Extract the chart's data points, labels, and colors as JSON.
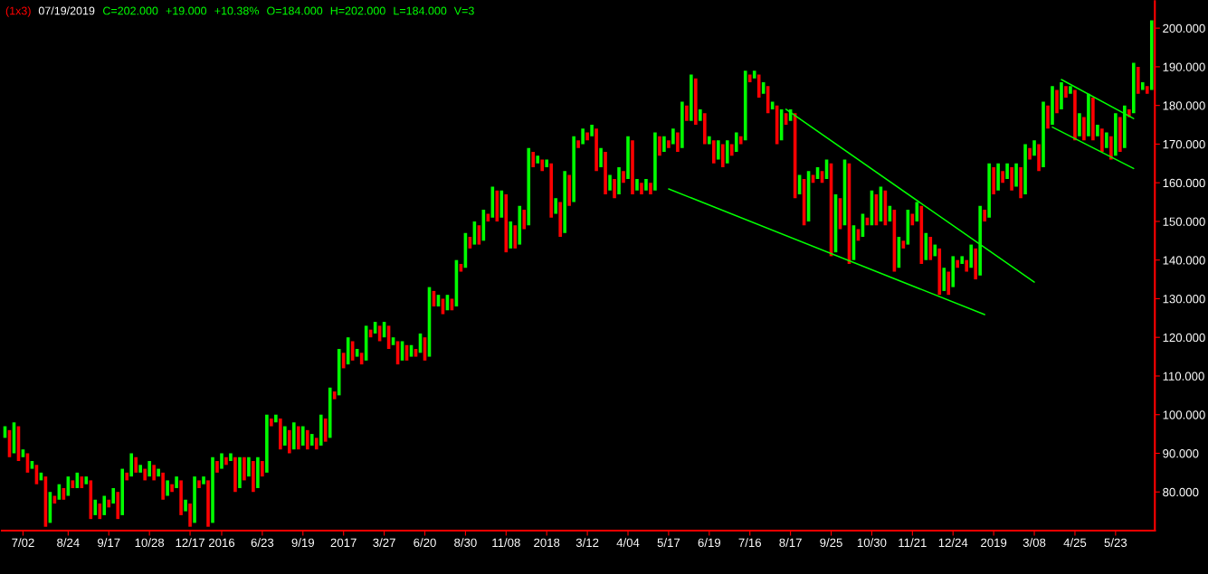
{
  "chart_data": {
    "type": "bar",
    "title": "(1x3)",
    "subtitle": "07/19/2019",
    "annotations": [
      "C=202.000",
      "+19.000",
      "+10.38%",
      "O=184.000",
      "H=202.000",
      "L=184.000",
      "V=3"
    ],
    "categories": [
      null,
      null,
      null,
      null,
      "7/02",
      null,
      null,
      null,
      null,
      null,
      null,
      null,
      null,
      null,
      "8/24",
      null,
      null,
      null,
      null,
      null,
      null,
      null,
      null,
      "9/17",
      null,
      null,
      null,
      null,
      null,
      null,
      null,
      null,
      "10/28",
      null,
      null,
      null,
      null,
      null,
      null,
      null,
      null,
      "12/17",
      null,
      null,
      null,
      null,
      null,
      null,
      "2016",
      null,
      null,
      null,
      null,
      null,
      null,
      null,
      null,
      "6/23",
      null,
      null,
      null,
      null,
      null,
      null,
      null,
      null,
      "9/19",
      null,
      null,
      null,
      null,
      null,
      null,
      null,
      null,
      "2017",
      null,
      null,
      null,
      null,
      null,
      null,
      null,
      null,
      "3/27",
      null,
      null,
      null,
      null,
      null,
      null,
      null,
      null,
      "6/20",
      null,
      null,
      null,
      null,
      null,
      null,
      null,
      null,
      "8/30",
      null,
      null,
      null,
      null,
      null,
      null,
      null,
      null,
      "11/08",
      null,
      null,
      null,
      null,
      null,
      null,
      null,
      null,
      "2018",
      null,
      null,
      null,
      null,
      null,
      null,
      null,
      null,
      "3/12",
      null,
      null,
      null,
      null,
      null,
      null,
      null,
      null,
      "4/04",
      null,
      null,
      null,
      null,
      null,
      null,
      null,
      null,
      "5/17",
      null,
      null,
      null,
      null,
      null,
      null,
      null,
      null,
      "6/19",
      null,
      null,
      null,
      null,
      null,
      null,
      null,
      null,
      "7/16",
      null,
      null,
      null,
      null,
      null,
      null,
      null,
      null,
      "8/17",
      null,
      null,
      null,
      null,
      null,
      null,
      null,
      null,
      "9/25",
      null,
      null,
      null,
      null,
      null,
      null,
      null,
      null,
      "10/30",
      null,
      null,
      null,
      null,
      null,
      null,
      null,
      null,
      "11/21",
      null,
      null,
      null,
      null,
      null,
      null,
      null,
      null,
      "12/24",
      null,
      null,
      null,
      null,
      null,
      null,
      null,
      null,
      "2019",
      null,
      null,
      null,
      null,
      null,
      null,
      null,
      null,
      "3/08",
      null,
      null,
      null,
      null,
      null,
      null,
      null,
      null,
      "4/25",
      null,
      null,
      null,
      null,
      null,
      null,
      null,
      null,
      "5/23",
      null,
      null,
      null,
      null,
      null,
      null,
      null,
      null
    ],
    "series": [
      {
        "base": [
          94,
          89,
          90,
          88,
          89,
          85,
          86,
          82,
          83,
          71,
          72,
          77,
          78,
          78,
          79,
          81,
          81,
          81,
          82,
          73,
          74,
          73,
          74,
          76,
          77,
          73,
          74,
          83,
          84,
          85,
          85,
          83,
          84,
          83,
          84,
          78,
          79,
          80,
          81,
          74,
          75,
          71,
          72,
          81,
          82,
          71,
          72,
          85,
          86,
          87,
          88,
          80,
          81,
          83,
          84,
          80,
          81,
          84,
          85,
          97,
          98,
          91,
          92,
          90,
          91,
          91,
          92,
          91,
          92,
          91,
          92,
          93,
          94,
          104,
          105,
          112,
          113,
          114,
          115,
          113,
          114,
          120,
          121,
          119,
          120,
          117,
          118,
          113,
          114,
          114,
          115,
          115,
          116,
          114,
          115,
          128,
          128,
          126,
          127,
          127,
          128,
          137,
          138,
          143,
          144,
          144,
          145,
          150,
          151,
          150,
          151,
          142,
          143,
          143,
          144,
          148,
          149,
          164,
          165,
          163,
          164,
          151,
          152,
          146,
          147,
          154,
          155,
          169,
          170,
          171,
          172,
          163,
          164,
          157,
          158,
          156,
          157,
          160,
          161,
          157,
          158,
          157,
          158,
          157,
          158,
          167,
          168,
          169,
          170,
          168,
          169,
          176,
          176,
          175,
          176,
          170,
          170,
          165,
          166,
          164,
          165,
          167,
          168,
          170,
          171,
          186,
          187,
          182,
          183,
          178,
          179,
          170,
          171,
          175,
          176,
          156,
          157,
          149,
          150,
          160,
          161,
          160,
          161,
          141,
          142,
          148,
          149,
          139,
          140,
          145,
          146,
          149,
          149,
          149,
          150,
          149,
          150,
          137,
          138,
          143,
          144,
          149,
          150,
          139,
          140,
          140,
          141,
          131,
          132,
          131,
          133,
          138,
          139,
          137,
          138,
          135,
          136,
          150,
          151,
          157,
          158,
          160,
          161,
          158,
          159,
          156,
          157,
          166,
          167,
          163,
          164,
          174,
          175,
          178,
          179,
          182,
          183,
          171,
          172,
          171,
          172,
          171,
          172,
          168,
          169,
          166,
          167,
          168,
          169,
          177,
          178,
          183,
          184,
          183,
          184
        ],
        "values": [
          3,
          7,
          8,
          9,
          2,
          5,
          2,
          5,
          2,
          13,
          8,
          2,
          4,
          3,
          5,
          2,
          4,
          3,
          2,
          10,
          4,
          4,
          5,
          2,
          4,
          7,
          12,
          2,
          6,
          4,
          2,
          3,
          4,
          4,
          2,
          7,
          4,
          2,
          3,
          9,
          3,
          6,
          12,
          2,
          2,
          12,
          17,
          3,
          4,
          2,
          2,
          9,
          8,
          6,
          5,
          8,
          8,
          4,
          15,
          2,
          2,
          8,
          5,
          6,
          7,
          6,
          5,
          5,
          3,
          3,
          8,
          6,
          13,
          2,
          12,
          4,
          7,
          5,
          2,
          3,
          9,
          2,
          3,
          4,
          4,
          6,
          2,
          6,
          5,
          4,
          3,
          2,
          5,
          6,
          18,
          4,
          3,
          4,
          4,
          3,
          12,
          2,
          9,
          3,
          6,
          5,
          8,
          2,
          8,
          8,
          7,
          15,
          7,
          6,
          10,
          5,
          20,
          4,
          2,
          3,
          2,
          14,
          4,
          9,
          16,
          8,
          17,
          2,
          4,
          2,
          3,
          11,
          5,
          11,
          4,
          5,
          7,
          3,
          11,
          14,
          3,
          3,
          3,
          3,
          15,
          5,
          4,
          2,
          4,
          5,
          12,
          4,
          12,
          12,
          3,
          8,
          2,
          6,
          5,
          6,
          6,
          3,
          5,
          2,
          18,
          2,
          2,
          6,
          3,
          7,
          2,
          10,
          8,
          3,
          3,
          22,
          5,
          12,
          13,
          2,
          3,
          3,
          5,
          24,
          15,
          8,
          17,
          26,
          9,
          3,
          6,
          2,
          9,
          8,
          9,
          9,
          4,
          16,
          8,
          2,
          9,
          3,
          5,
          15,
          7,
          6,
          3,
          12,
          6,
          6,
          8,
          2,
          2,
          3,
          6,
          8,
          18,
          3,
          14,
          7,
          7,
          3,
          4,
          6,
          6,
          8,
          13,
          3,
          4,
          7,
          17,
          6,
          10,
          6,
          7,
          3,
          2,
          13,
          6,
          6,
          11,
          11,
          3,
          6,
          4,
          6,
          11,
          9,
          11,
          2,
          13,
          7,
          2,
          2,
          18
        ],
        "colors": [
          "#00ff00",
          "#ff0000",
          "#00ff00",
          "#ff0000",
          "#00ff00",
          "#ff0000",
          "#00ff00",
          "#ff0000",
          "#00ff00",
          "#ff0000",
          "#00ff00",
          "#ff0000",
          "#00ff00",
          "#ff0000",
          "#00ff00",
          "#ff0000",
          "#00ff00",
          "#ff0000",
          "#00ff00",
          "#ff0000",
          "#00ff00",
          "#ff0000",
          "#00ff00",
          "#ff0000",
          "#00ff00",
          "#ff0000",
          "#00ff00",
          "#ff0000",
          "#00ff00",
          "#ff0000",
          "#00ff00",
          "#ff0000",
          "#00ff00",
          "#ff0000",
          "#00ff00",
          "#ff0000",
          "#00ff00",
          "#ff0000",
          "#00ff00",
          "#ff0000",
          "#00ff00",
          "#ff0000",
          "#00ff00",
          "#ff0000",
          "#00ff00",
          "#ff0000",
          "#00ff00",
          "#ff0000",
          "#00ff00",
          "#ff0000",
          "#00ff00",
          "#ff0000",
          "#00ff00",
          "#ff0000",
          "#00ff00",
          "#ff0000",
          "#00ff00",
          "#ff0000",
          "#00ff00",
          "#ff0000",
          "#00ff00",
          "#ff0000",
          "#00ff00",
          "#ff0000",
          "#00ff00",
          "#ff0000",
          "#00ff00",
          "#ff0000",
          "#00ff00",
          "#ff0000",
          "#00ff00",
          "#ff0000",
          "#00ff00",
          "#ff0000",
          "#00ff00",
          "#ff0000",
          "#00ff00",
          "#ff0000",
          "#00ff00",
          "#ff0000",
          "#00ff00",
          "#ff0000",
          "#00ff00",
          "#ff0000",
          "#00ff00",
          "#ff0000",
          "#00ff00",
          "#ff0000",
          "#00ff00",
          "#ff0000",
          "#00ff00",
          "#ff0000",
          "#00ff00",
          "#ff0000",
          "#00ff00",
          "#ff0000",
          "#00ff00",
          "#ff0000",
          "#00ff00",
          "#ff0000",
          "#00ff00",
          "#ff0000",
          "#00ff00",
          "#ff0000",
          "#00ff00",
          "#ff0000",
          "#00ff00",
          "#ff0000",
          "#00ff00",
          "#ff0000",
          "#00ff00",
          "#ff0000",
          "#00ff00",
          "#ff0000",
          "#00ff00",
          "#ff0000",
          "#00ff00",
          "#ff0000",
          "#00ff00",
          "#ff0000",
          "#00ff00",
          "#ff0000",
          "#00ff00",
          "#ff0000",
          "#00ff00",
          "#ff0000",
          "#00ff00",
          "#ff0000",
          "#00ff00",
          "#ff0000",
          "#00ff00",
          "#ff0000",
          "#00ff00",
          "#ff0000",
          "#00ff00",
          "#ff0000",
          "#00ff00",
          "#ff0000",
          "#00ff00",
          "#ff0000",
          "#00ff00",
          "#ff0000",
          "#00ff00",
          "#ff0000",
          "#00ff00",
          "#ff0000",
          "#00ff00",
          "#ff0000",
          "#00ff00",
          "#ff0000",
          "#00ff00",
          "#ff0000",
          "#00ff00",
          "#ff0000",
          "#00ff00",
          "#ff0000",
          "#00ff00",
          "#ff0000",
          "#00ff00",
          "#ff0000",
          "#00ff00",
          "#ff0000",
          "#00ff00",
          "#ff0000",
          "#00ff00",
          "#ff0000",
          "#00ff00",
          "#ff0000",
          "#00ff00",
          "#ff0000",
          "#00ff00",
          "#ff0000",
          "#00ff00",
          "#ff0000",
          "#00ff00",
          "#ff0000",
          "#00ff00",
          "#ff0000",
          "#00ff00",
          "#ff0000",
          "#00ff00",
          "#ff0000",
          "#00ff00",
          "#ff0000",
          "#00ff00",
          "#ff0000",
          "#00ff00",
          "#ff0000",
          "#00ff00",
          "#ff0000",
          "#00ff00",
          "#ff0000",
          "#00ff00",
          "#ff0000",
          "#00ff00",
          "#ff0000",
          "#00ff00",
          "#ff0000",
          "#00ff00",
          "#ff0000",
          "#00ff00",
          "#ff0000",
          "#00ff00",
          "#ff0000",
          "#00ff00",
          "#ff0000",
          "#00ff00",
          "#ff0000",
          "#00ff00",
          "#ff0000",
          "#00ff00",
          "#ff0000",
          "#00ff00",
          "#ff0000",
          "#00ff00",
          "#ff0000",
          "#00ff00",
          "#ff0000",
          "#00ff00",
          "#ff0000",
          "#00ff00",
          "#ff0000",
          "#00ff00",
          "#ff0000",
          "#00ff00",
          "#ff0000",
          "#00ff00",
          "#ff0000",
          "#00ff00",
          "#ff0000",
          "#00ff00",
          "#ff0000",
          "#00ff00",
          "#ff0000",
          "#00ff00",
          "#ff0000",
          "#00ff00",
          "#ff0000",
          "#00ff00",
          "#ff0000",
          "#00ff00",
          "#ff0000",
          "#00ff00",
          "#ff0000",
          "#00ff00",
          "#ff0000",
          "#00ff00",
          "#ff0000",
          "#00ff00",
          "#ff0000",
          "#00ff00",
          "#ff0000",
          "#00ff00",
          "#ff0000",
          "#00ff00"
        ]
      },
      {
        "type": "line",
        "color": "#00ff00",
        "values": [
          null,
          null,
          null,
          null,
          null,
          null,
          null,
          null,
          null,
          null,
          null,
          null,
          null,
          null,
          null,
          null,
          null,
          null,
          null,
          null,
          null,
          null,
          null,
          null,
          null,
          null,
          null,
          null,
          null,
          null,
          null,
          null,
          null,
          null,
          null,
          null,
          null,
          null,
          null,
          null,
          null,
          null,
          null,
          null,
          null,
          null,
          null,
          null,
          null,
          null,
          null,
          null,
          null,
          null,
          null,
          null,
          null,
          null,
          null,
          null,
          null,
          null,
          null,
          null,
          null,
          null,
          null,
          null,
          null,
          null,
          null,
          null,
          null,
          null,
          null,
          null,
          null,
          null,
          null,
          null,
          null,
          null,
          null,
          null,
          null,
          null,
          null,
          null,
          null,
          null,
          null,
          null,
          null,
          null,
          null,
          null,
          null,
          null,
          null,
          null,
          null,
          null,
          null,
          null,
          null,
          null,
          null,
          null,
          null,
          null,
          null,
          null,
          null,
          null,
          null,
          null,
          null,
          null,
          null,
          null,
          null,
          null,
          null,
          null,
          null,
          null,
          null,
          null,
          null,
          null,
          null,
          null,
          null,
          null,
          null,
          null,
          null,
          null,
          null,
          null,
          null,
          null,
          null,
          null,
          null,
          null,
          null,
          158.4,
          null,
          null,
          null,
          null,
          null,
          null,
          null,
          null,
          null,
          null,
          null,
          null,
          null,
          null,
          null,
          null,
          null,
          null,
          null,
          null,
          null,
          null,
          null,
          null,
          null,
          null,
          null,
          null,
          null,
          null,
          null,
          null,
          null,
          null,
          null,
          null,
          null,
          null,
          null,
          null,
          null,
          null,
          null,
          null,
          null,
          null,
          null,
          null,
          null,
          null,
          null,
          null,
          null,
          null,
          null,
          null,
          null,
          null,
          null,
          null,
          null,
          null,
          null,
          null,
          null,
          null,
          null,
          null,
          null,
          125.9,
          null,
          null,
          null,
          null,
          null,
          null,
          null,
          null,
          null,
          null,
          null,
          null,
          null,
          null,
          null,
          null,
          null,
          null,
          null,
          null,
          null,
          null,
          null,
          null,
          null,
          null,
          null,
          null,
          null,
          null,
          null,
          null,
          null,
          null,
          null,
          null,
          null
        ]
      },
      {
        "type": "line",
        "color": "#00ff00",
        "values": [
          null,
          null,
          null,
          null,
          null,
          null,
          null,
          null,
          null,
          null,
          null,
          null,
          null,
          null,
          null,
          null,
          null,
          null,
          null,
          null,
          null,
          null,
          null,
          null,
          null,
          null,
          null,
          null,
          null,
          null,
          null,
          null,
          null,
          null,
          null,
          null,
          null,
          null,
          null,
          null,
          null,
          null,
          null,
          null,
          null,
          null,
          null,
          null,
          null,
          null,
          null,
          null,
          null,
          null,
          null,
          null,
          null,
          null,
          null,
          null,
          null,
          null,
          null,
          null,
          null,
          null,
          null,
          null,
          null,
          null,
          null,
          null,
          null,
          null,
          null,
          null,
          null,
          null,
          null,
          null,
          null,
          null,
          null,
          null,
          null,
          null,
          null,
          null,
          null,
          null,
          null,
          null,
          null,
          null,
          null,
          null,
          null,
          null,
          null,
          null,
          null,
          null,
          null,
          null,
          null,
          null,
          null,
          null,
          null,
          null,
          null,
          null,
          null,
          null,
          null,
          null,
          null,
          null,
          null,
          null,
          null,
          null,
          null,
          null,
          null,
          null,
          null,
          null,
          null,
          null,
          null,
          null,
          null,
          null,
          null,
          null,
          null,
          null,
          null,
          null,
          null,
          null,
          null,
          null,
          null,
          null,
          null,
          null,
          null,
          null,
          null,
          null,
          null,
          null,
          null,
          null,
          null,
          null,
          null,
          null,
          null,
          null,
          null,
          null,
          null,
          null,
          null,
          null,
          null,
          null,
          null,
          null,
          null,
          179,
          null,
          null,
          null,
          null,
          null,
          null,
          null,
          null,
          null,
          null,
          null,
          null,
          null,
          null,
          null,
          null,
          null,
          null,
          null,
          null,
          null,
          null,
          null,
          null,
          null,
          null,
          null,
          null,
          null,
          null,
          null,
          null,
          null,
          null,
          null,
          null,
          null,
          null,
          null,
          null,
          null,
          null,
          null,
          null,
          null,
          null,
          null,
          null,
          null,
          null,
          null,
          null,
          null,
          null,
          134.3,
          null,
          null,
          null,
          null,
          null,
          null,
          null,
          null,
          null,
          null,
          null,
          null,
          null,
          null,
          null,
          null,
          null,
          null,
          null,
          null,
          null,
          null,
          null,
          null,
          null,
          null
        ]
      },
      {
        "type": "line",
        "color": "#00ff00",
        "values": [
          null,
          null,
          null,
          null,
          null,
          null,
          null,
          null,
          null,
          null,
          null,
          null,
          null,
          null,
          null,
          null,
          null,
          null,
          null,
          null,
          null,
          null,
          null,
          null,
          null,
          null,
          null,
          null,
          null,
          null,
          null,
          null,
          null,
          null,
          null,
          null,
          null,
          null,
          null,
          null,
          null,
          null,
          null,
          null,
          null,
          null,
          null,
          null,
          null,
          null,
          null,
          null,
          null,
          null,
          null,
          null,
          null,
          null,
          null,
          null,
          null,
          null,
          null,
          null,
          null,
          null,
          null,
          null,
          null,
          null,
          null,
          null,
          null,
          null,
          null,
          null,
          null,
          null,
          null,
          null,
          null,
          null,
          null,
          null,
          null,
          null,
          null,
          null,
          null,
          null,
          null,
          null,
          null,
          null,
          null,
          null,
          null,
          null,
          null,
          null,
          null,
          null,
          null,
          null,
          null,
          null,
          null,
          null,
          null,
          null,
          null,
          null,
          null,
          null,
          null,
          null,
          null,
          null,
          null,
          null,
          null,
          null,
          null,
          null,
          null,
          null,
          null,
          null,
          null,
          null,
          null,
          null,
          null,
          null,
          null,
          null,
          null,
          null,
          null,
          null,
          null,
          null,
          null,
          null,
          null,
          null,
          null,
          null,
          null,
          null,
          null,
          null,
          null,
          null,
          null,
          null,
          null,
          null,
          null,
          null,
          null,
          null,
          null,
          null,
          null,
          null,
          null,
          null,
          null,
          null,
          null,
          null,
          null,
          null,
          null,
          null,
          null,
          null,
          null,
          null,
          null,
          null,
          null,
          null,
          null,
          null,
          null,
          null,
          null,
          null,
          null,
          null,
          null,
          null,
          null,
          null,
          null,
          null,
          null,
          null,
          null,
          null,
          null,
          null,
          null,
          null,
          null,
          null,
          null,
          null,
          null,
          null,
          null,
          null,
          null,
          null,
          null,
          null,
          null,
          null,
          null,
          null,
          null,
          null,
          null,
          null,
          null,
          null,
          null,
          null,
          null,
          null,
          null,
          null,
          186.7,
          null,
          null,
          null,
          null,
          null,
          null,
          null,
          null,
          null,
          null,
          null,
          null,
          null,
          null,
          null,
          176.6,
          null,
          null,
          null,
          null
        ]
      },
      {
        "type": "line",
        "color": "#00ff00",
        "values": [
          null,
          null,
          null,
          null,
          null,
          null,
          null,
          null,
          null,
          null,
          null,
          null,
          null,
          null,
          null,
          null,
          null,
          null,
          null,
          null,
          null,
          null,
          null,
          null,
          null,
          null,
          null,
          null,
          null,
          null,
          null,
          null,
          null,
          null,
          null,
          null,
          null,
          null,
          null,
          null,
          null,
          null,
          null,
          null,
          null,
          null,
          null,
          null,
          null,
          null,
          null,
          null,
          null,
          null,
          null,
          null,
          null,
          null,
          null,
          null,
          null,
          null,
          null,
          null,
          null,
          null,
          null,
          null,
          null,
          null,
          null,
          null,
          null,
          null,
          null,
          null,
          null,
          null,
          null,
          null,
          null,
          null,
          null,
          null,
          null,
          null,
          null,
          null,
          null,
          null,
          null,
          null,
          null,
          null,
          null,
          null,
          null,
          null,
          null,
          null,
          null,
          null,
          null,
          null,
          null,
          null,
          null,
          null,
          null,
          null,
          null,
          null,
          null,
          null,
          null,
          null,
          null,
          null,
          null,
          null,
          null,
          null,
          null,
          null,
          null,
          null,
          null,
          null,
          null,
          null,
          null,
          null,
          null,
          null,
          null,
          null,
          null,
          null,
          null,
          null,
          null,
          null,
          null,
          null,
          null,
          null,
          null,
          null,
          null,
          null,
          null,
          null,
          null,
          null,
          null,
          null,
          null,
          null,
          null,
          null,
          null,
          null,
          null,
          null,
          null,
          null,
          null,
          null,
          null,
          null,
          null,
          null,
          null,
          null,
          null,
          null,
          null,
          null,
          null,
          null,
          null,
          null,
          null,
          null,
          null,
          null,
          null,
          null,
          null,
          null,
          null,
          null,
          null,
          null,
          null,
          null,
          null,
          null,
          null,
          null,
          null,
          null,
          null,
          null,
          null,
          null,
          null,
          null,
          null,
          null,
          null,
          null,
          null,
          null,
          null,
          null,
          null,
          null,
          null,
          null,
          null,
          null,
          null,
          null,
          null,
          null,
          null,
          null,
          null,
          null,
          null,
          null,
          174.4,
          null,
          null,
          null,
          null,
          null,
          null,
          null,
          null,
          null,
          null,
          null,
          null,
          null,
          null,
          null,
          null,
          null,
          163.7,
          null,
          null,
          null,
          null
        ]
      }
    ],
    "ylim": [
      70,
      207
    ],
    "yticks": [
      {
        "value": 80,
        "label": "80.000"
      },
      {
        "value": 90,
        "label": "90.000"
      },
      {
        "value": 100,
        "label": "100.000"
      },
      {
        "value": 110,
        "label": "110.000"
      },
      {
        "value": 120,
        "label": "120.000"
      },
      {
        "value": 130,
        "label": "130.000"
      },
      {
        "value": 140,
        "label": "140.000"
      },
      {
        "value": 150,
        "label": "150.000"
      },
      {
        "value": 160,
        "label": "160.000"
      },
      {
        "value": 170,
        "label": "170.000"
      },
      {
        "value": 180,
        "label": "180.000"
      },
      {
        "value": 190,
        "label": "190.000"
      },
      {
        "value": 200,
        "label": "200.000"
      }
    ],
    "grid": false
  }
}
